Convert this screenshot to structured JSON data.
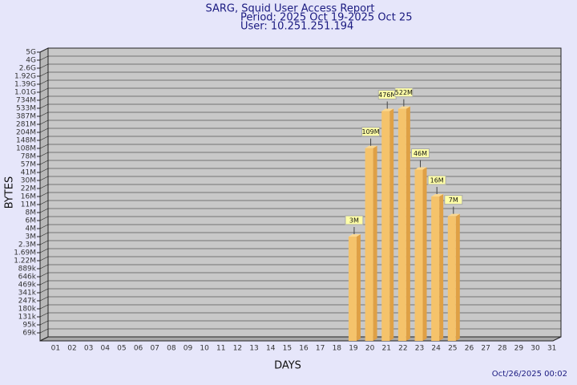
{
  "chart_data": {
    "type": "bar",
    "title": "SARG, Squid User Access Report",
    "subtitle": [
      "Period: 2025 Oct 19-2025 Oct 25",
      "User: 10.251.251.194"
    ],
    "xlabel": "DAYS",
    "ylabel": "BYTES",
    "footer": "Oct/26/2025 00:02",
    "categories": [
      "01",
      "02",
      "03",
      "04",
      "05",
      "06",
      "07",
      "08",
      "09",
      "10",
      "11",
      "12",
      "13",
      "14",
      "15",
      "16",
      "17",
      "18",
      "19",
      "20",
      "21",
      "22",
      "23",
      "24",
      "25",
      "26",
      "27",
      "28",
      "29",
      "30",
      "31"
    ],
    "values": [
      null,
      null,
      null,
      null,
      null,
      null,
      null,
      null,
      null,
      null,
      null,
      null,
      null,
      null,
      null,
      null,
      null,
      null,
      3000000,
      109000000,
      476000000,
      522000000,
      46000000,
      16000000,
      7000000,
      null,
      null,
      null,
      null,
      null,
      null
    ],
    "value_labels": [
      null,
      null,
      null,
      null,
      null,
      null,
      null,
      null,
      null,
      null,
      null,
      null,
      null,
      null,
      null,
      null,
      null,
      null,
      "3M",
      "109M",
      "476M",
      "522M",
      "46M",
      "16M",
      "7M",
      null,
      null,
      null,
      null,
      null,
      null
    ],
    "color": "#f5c36b",
    "log_scale": true,
    "grid": true,
    "ylim": [
      50000,
      5000000000
    ],
    "yticks": [
      {
        "value": 69000,
        "label": "69k"
      },
      {
        "value": 95000,
        "label": "95k"
      },
      {
        "value": 131000,
        "label": "131k"
      },
      {
        "value": 180000,
        "label": "180k"
      },
      {
        "value": 247000,
        "label": "247k"
      },
      {
        "value": 341000,
        "label": "341k"
      },
      {
        "value": 469000,
        "label": "469k"
      },
      {
        "value": 646000,
        "label": "646k"
      },
      {
        "value": 889000,
        "label": "889k"
      },
      {
        "value": 1220000,
        "label": "1.22M"
      },
      {
        "value": 1690000,
        "label": "1.69M"
      },
      {
        "value": 2300000,
        "label": "2.3M"
      },
      {
        "value": 3000000,
        "label": "3M"
      },
      {
        "value": 4000000,
        "label": "4M"
      },
      {
        "value": 6000000,
        "label": "6M"
      },
      {
        "value": 8000000,
        "label": "8M"
      },
      {
        "value": 11000000,
        "label": "11M"
      },
      {
        "value": 16000000,
        "label": "16M"
      },
      {
        "value": 22000000,
        "label": "22M"
      },
      {
        "value": 30000000,
        "label": "30M"
      },
      {
        "value": 41000000,
        "label": "41M"
      },
      {
        "value": 57000000,
        "label": "57M"
      },
      {
        "value": 78000000,
        "label": "78M"
      },
      {
        "value": 108000000,
        "label": "108M"
      },
      {
        "value": 148000000,
        "label": "148M"
      },
      {
        "value": 204000000,
        "label": "204M"
      },
      {
        "value": 281000000,
        "label": "281M"
      },
      {
        "value": 387000000,
        "label": "387M"
      },
      {
        "value": 533000000,
        "label": "533M"
      },
      {
        "value": 734000000,
        "label": "734M"
      },
      {
        "value": 1010000000,
        "label": "1.01G"
      },
      {
        "value": 1390000000,
        "label": "1.39G"
      },
      {
        "value": 1920000000,
        "label": "1.92G"
      },
      {
        "value": 2600000000,
        "label": "2.6G"
      },
      {
        "value": 4000000000,
        "label": "4G"
      },
      {
        "value": 5000000000,
        "label": "5G"
      }
    ]
  }
}
